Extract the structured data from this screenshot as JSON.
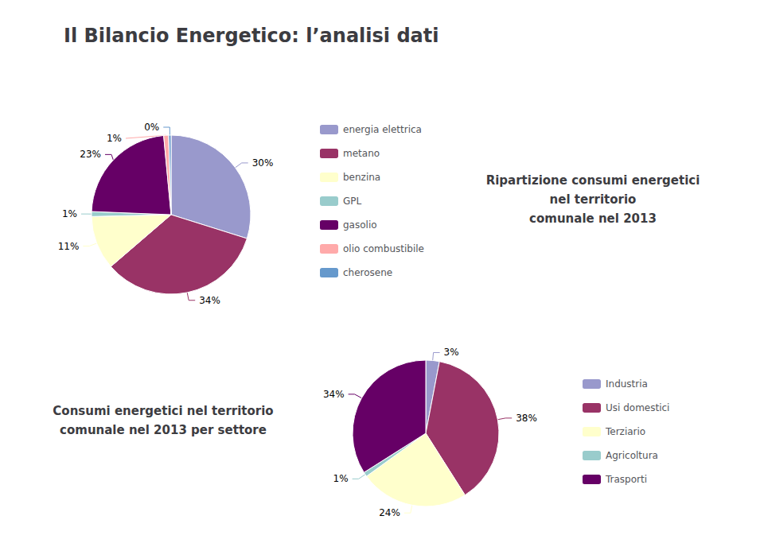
{
  "title": "Il Bilancio Energetico: l’analisi dati",
  "chart_data": [
    {
      "type": "pie",
      "title": "Ripartizione consumi energetici\nnel territorio\ncomunale nel 2013",
      "categories": [
        "energia elettrica",
        "metano",
        "benzina",
        "GPL",
        "gasolio",
        "olio combustibile",
        "cherosene"
      ],
      "values": [
        30,
        34,
        11,
        1,
        23,
        1,
        0.5
      ],
      "value_labels": [
        "30%",
        "34%",
        "11%",
        "1%",
        "23%",
        "1%",
        "0%"
      ],
      "colors": [
        "#9999cc",
        "#993366",
        "#ffffcc",
        "#99cccc",
        "#660066",
        "#ffaaaa",
        "#6699cc"
      ],
      "data_labels": true,
      "legend": "right"
    },
    {
      "type": "pie",
      "title": "Consumi energetici nel territorio\ncomunale nel 2013 per settore",
      "categories": [
        "Industria",
        "Usi domestici",
        "Terziario",
        "Agricoltura",
        "Trasporti"
      ],
      "values": [
        3,
        38,
        24,
        1,
        34
      ],
      "value_labels": [
        "3%",
        "38%",
        "24%",
        "1%",
        "34%"
      ],
      "colors": [
        "#9999cc",
        "#993366",
        "#ffffcc",
        "#99cccc",
        "#660066"
      ],
      "data_labels": true,
      "legend": "right"
    }
  ]
}
